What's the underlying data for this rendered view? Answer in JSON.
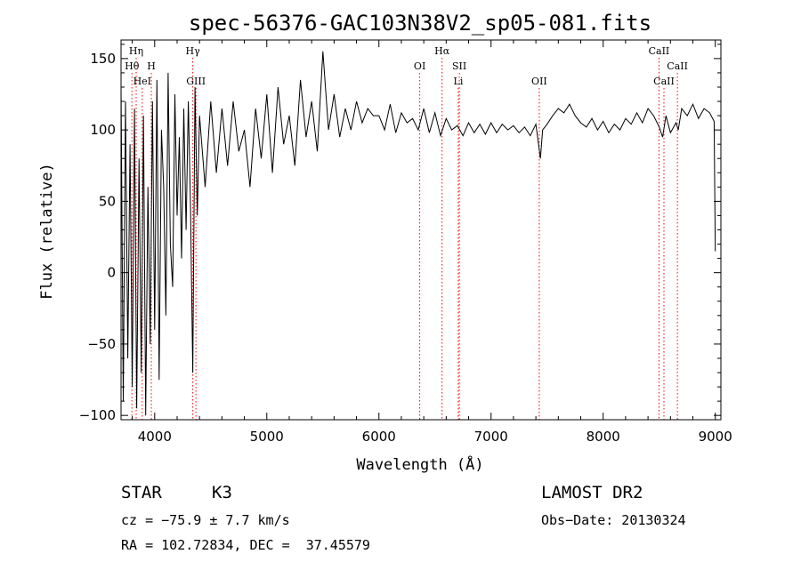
{
  "chart_data": {
    "type": "line",
    "title": "spec-56376-GAC103N38V2_sp05-081.fits",
    "xlabel": "Wavelength (Å)",
    "ylabel": "Flux (relative)",
    "xlim": [
      3700,
      9050
    ],
    "ylim": [
      -103,
      163
    ],
    "xticks": [
      4000,
      5000,
      6000,
      7000,
      8000,
      9000
    ],
    "yticks": [
      -100,
      -50,
      0,
      50,
      100,
      150
    ],
    "grid": false,
    "line_color": "#000000",
    "marker_color": "#ff0000",
    "spectral_lines": [
      {
        "label": "Hη",
        "wavelength": 3835,
        "row": 0
      },
      {
        "label": "Hθ",
        "wavelength": 3797,
        "row": 1
      },
      {
        "label": "H",
        "wavelength": 3970,
        "row": 1
      },
      {
        "label": "HeI",
        "wavelength": 3889,
        "row": 2
      },
      {
        "label": "Hγ",
        "wavelength": 4340,
        "row": 0
      },
      {
        "label": "GIII",
        "wavelength": 4368,
        "row": 2
      },
      {
        "label": "OI",
        "wavelength": 6364,
        "row": 1
      },
      {
        "label": "Hα",
        "wavelength": 6563,
        "row": 0
      },
      {
        "label": "SII",
        "wavelength": 6717,
        "row": 1
      },
      {
        "label": "Li",
        "wavelength": 6708,
        "row": 2
      },
      {
        "label": "OII",
        "wavelength": 7430,
        "row": 2
      },
      {
        "label": "CaII",
        "wavelength": 8498,
        "row": 0
      },
      {
        "label": "CaII",
        "wavelength": 8662,
        "row": 1
      },
      {
        "label": "CaII",
        "wavelength": 8542,
        "row": 2
      }
    ],
    "series": [
      {
        "x": [
          3700,
          3720,
          3740,
          3760,
          3780,
          3800,
          3820,
          3840,
          3860,
          3880,
          3900,
          3920,
          3940,
          3960,
          3980,
          4000,
          4020,
          4040,
          4060,
          4080,
          4100,
          4120,
          4140,
          4160,
          4180,
          4200,
          4220,
          4240,
          4260,
          4280,
          4300,
          4320,
          4340,
          4360,
          4380,
          4400,
          4450,
          4500,
          4550,
          4600,
          4650,
          4700,
          4750,
          4800,
          4850,
          4900,
          4950,
          5000,
          5050,
          5100,
          5150,
          5200,
          5250,
          5300,
          5350,
          5400,
          5450,
          5500,
          5550,
          5600,
          5650,
          5700,
          5750,
          5800,
          5850,
          5900,
          5950,
          6000,
          6050,
          6100,
          6150,
          6200,
          6250,
          6300,
          6350,
          6400,
          6450,
          6500,
          6550,
          6600,
          6650,
          6700,
          6750,
          6800,
          6850,
          6900,
          6950,
          7000,
          7050,
          7100,
          7150,
          7200,
          7250,
          7300,
          7350,
          7400,
          7420,
          7440,
          7460,
          7500,
          7550,
          7600,
          7650,
          7700,
          7750,
          7800,
          7850,
          7900,
          7950,
          8000,
          8050,
          8100,
          8150,
          8200,
          8250,
          8300,
          8350,
          8400,
          8450,
          8500,
          8530,
          8560,
          8600,
          8650,
          8670,
          8700,
          8750,
          8800,
          8850,
          8900,
          8950,
          8990,
          9000
        ],
        "y": [
          130,
          -90,
          120,
          -60,
          90,
          -80,
          115,
          -95,
          80,
          -70,
          110,
          -100,
          60,
          -50,
          120,
          -40,
          135,
          -75,
          100,
          60,
          -30,
          140,
          20,
          -10,
          125,
          40,
          95,
          10,
          115,
          30,
          120,
          45,
          -70,
          130,
          40,
          110,
          60,
          120,
          70,
          115,
          75,
          120,
          85,
          100,
          60,
          115,
          80,
          125,
          70,
          130,
          90,
          110,
          75,
          135,
          95,
          120,
          85,
          155,
          100,
          125,
          95,
          115,
          100,
          120,
          105,
          115,
          110,
          110,
          100,
          118,
          98,
          112,
          105,
          108,
          100,
          115,
          98,
          112,
          96,
          108,
          100,
          103,
          96,
          105,
          98,
          104,
          97,
          105,
          98,
          104,
          100,
          103,
          98,
          102,
          96,
          104,
          92,
          80,
          100,
          104,
          110,
          115,
          112,
          118,
          110,
          105,
          102,
          108,
          100,
          106,
          98,
          104,
          100,
          108,
          104,
          112,
          105,
          115,
          110,
          102,
          95,
          110,
          98,
          105,
          100,
          115,
          110,
          118,
          108,
          115,
          112,
          106,
          15
        ]
      }
    ],
    "footer": {
      "object_class": "STAR",
      "subclass": "K3",
      "survey": "LAMOST DR2",
      "redshift": "cz = −75.9 ± 7.7 km/s",
      "obs_date": "Obs−Date: 20130324",
      "coords": "RA = 102.72834, DEC =  37.45579"
    }
  }
}
